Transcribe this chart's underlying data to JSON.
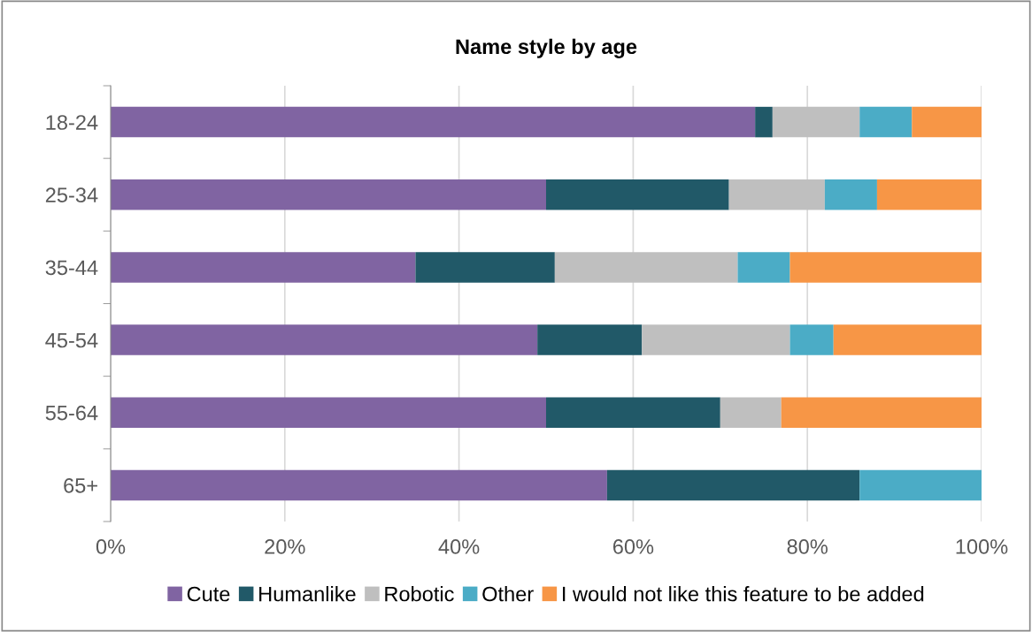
{
  "chart_data": {
    "type": "bar",
    "title": "Name style by age",
    "orientation": "horizontal",
    "stacked": true,
    "categories": [
      "18-24",
      "25-34",
      "35-44",
      "45-54",
      "55-64",
      "65+"
    ],
    "series": [
      {
        "name": "Cute",
        "color": "#8064a2",
        "values": [
          74,
          50,
          35,
          49,
          50,
          57
        ]
      },
      {
        "name": "Humanlike",
        "color": "#215968",
        "values": [
          2,
          21,
          16,
          12,
          20,
          29
        ]
      },
      {
        "name": "Robotic",
        "color": "#bfbfbf",
        "values": [
          10,
          11,
          21,
          17,
          7,
          0
        ]
      },
      {
        "name": "Other",
        "color": "#4bacc6",
        "values": [
          6,
          6,
          6,
          5,
          0,
          14
        ]
      },
      {
        "name": "I would not like this feature to be added",
        "color": "#f79646",
        "values": [
          8,
          12,
          22,
          17,
          23,
          0
        ]
      }
    ],
    "xlim": [
      0,
      100
    ],
    "xticks": [
      {
        "value": 0,
        "label": "0%"
      },
      {
        "value": 20,
        "label": "20%"
      },
      {
        "value": 40,
        "label": "40%"
      },
      {
        "value": 60,
        "label": "60%"
      },
      {
        "value": 80,
        "label": "80%"
      },
      {
        "value": 100,
        "label": "100%"
      }
    ],
    "grid": "x",
    "legend": "bottom"
  }
}
